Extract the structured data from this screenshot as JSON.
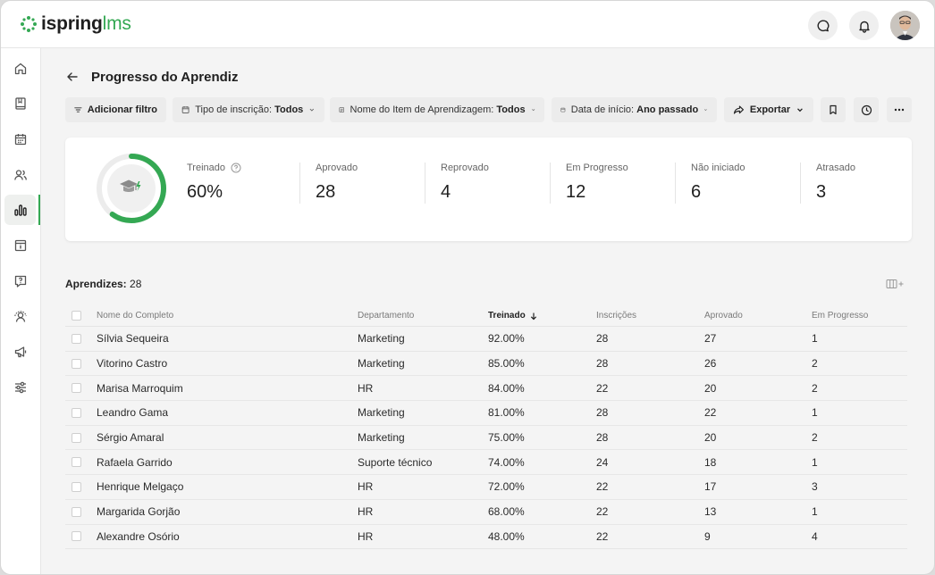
{
  "app": {
    "brand": "ispring",
    "product": "lms"
  },
  "header": {
    "icons": [
      "chat-icon",
      "bell-icon"
    ]
  },
  "sidebar": {
    "items": [
      {
        "name": "home-icon"
      },
      {
        "name": "book-icon"
      },
      {
        "name": "calendar-icon"
      },
      {
        "name": "users-icon"
      },
      {
        "name": "reports-icon",
        "active": true
      },
      {
        "name": "planner-icon"
      },
      {
        "name": "question-icon"
      },
      {
        "name": "user-settings-icon"
      },
      {
        "name": "megaphone-icon"
      },
      {
        "name": "sliders-icon"
      }
    ]
  },
  "page": {
    "title": "Progresso do Aprendiz"
  },
  "toolbar": {
    "add_filter": "Adicionar filtro",
    "filter1_label": "Tipo de inscrição:",
    "filter1_value": "Todos",
    "filter2_label": "Nome do Item de Aprendizagem:",
    "filter2_value": "Todos",
    "filter3_label": "Data de início:",
    "filter3_value": "Ano passado",
    "export": "Exportar"
  },
  "stats": {
    "trained_label": "Treinado",
    "trained_value": "60%",
    "trained_fraction": 0.6,
    "approved_label": "Aprovado",
    "approved_value": "28",
    "failed_label": "Reprovado",
    "failed_value": "4",
    "in_progress_label": "Em Progresso",
    "in_progress_value": "12",
    "not_started_label": "Não iniciado",
    "not_started_value": "6",
    "overdue_label": "Atrasado",
    "overdue_value": "3"
  },
  "learners": {
    "label": "Aprendizes:",
    "count": "28"
  },
  "table": {
    "headers": {
      "name": "Nome do Completo",
      "department": "Departamento",
      "trained": "Treinado",
      "enrollments": "Inscrições",
      "approved": "Aprovado",
      "in_progress": "Em Progresso"
    },
    "rows": [
      {
        "name": "Sílvia Sequeira",
        "department": "Marketing",
        "trained": "92.00%",
        "enrollments": "28",
        "approved": "27",
        "in_progress": "1"
      },
      {
        "name": "Vitorino Castro",
        "department": "Marketing",
        "trained": "85.00%",
        "enrollments": "28",
        "approved": "26",
        "in_progress": "2"
      },
      {
        "name": "Marisa Marroquim",
        "department": "HR",
        "trained": "84.00%",
        "enrollments": "22",
        "approved": "20",
        "in_progress": "2"
      },
      {
        "name": "Leandro Gama",
        "department": "Marketing",
        "trained": "81.00%",
        "enrollments": "28",
        "approved": "22",
        "in_progress": "1"
      },
      {
        "name": "Sérgio Amaral",
        "department": "Marketing",
        "trained": "75.00%",
        "enrollments": "28",
        "approved": "20",
        "in_progress": "2"
      },
      {
        "name": "Rafaela Garrido",
        "department": "Suporte técnico",
        "trained": "74.00%",
        "enrollments": "24",
        "approved": "18",
        "in_progress": "1"
      },
      {
        "name": "Henrique Melgaço",
        "department": "HR",
        "trained": "72.00%",
        "enrollments": "22",
        "approved": "17",
        "in_progress": "3"
      },
      {
        "name": "Margarida Gorjão",
        "department": "HR",
        "trained": "68.00%",
        "enrollments": "22",
        "approved": "13",
        "in_progress": "1"
      },
      {
        "name": "Alexandre Osório",
        "department": "HR",
        "trained": "48.00%",
        "enrollments": "22",
        "approved": "9",
        "in_progress": "4"
      }
    ]
  },
  "colors": {
    "accent": "#34a853"
  }
}
